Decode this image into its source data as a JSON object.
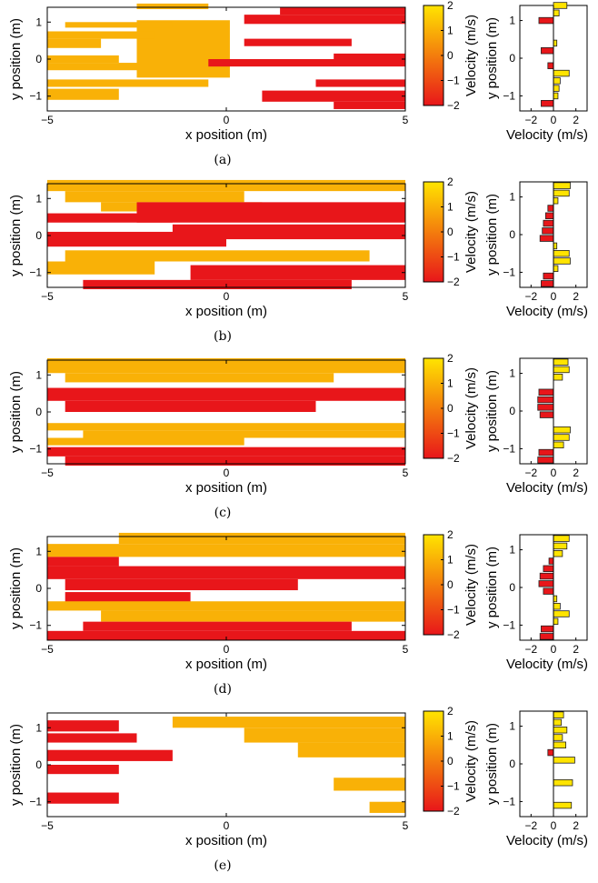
{
  "colors": {
    "yellow": "#FFE400",
    "red": "#E8161A",
    "outline": "#222222"
  },
  "chart_data": [
    {
      "type": "heatmap",
      "panel_label": "(a)",
      "xlabel": "x  position (m)",
      "ylabel": "y  position (m)",
      "xlim": [
        -5,
        5
      ],
      "ylim": [
        -1.4,
        1.4
      ],
      "x_ticks": [
        "-5",
        "0",
        "5"
      ],
      "y_ticks": [
        "-1",
        "0",
        "1"
      ],
      "colorbar": {
        "label": "Velocity (m/s)",
        "range": [
          -2,
          2
        ],
        "ticks": [
          "-2",
          "-1",
          "0",
          "1",
          "2"
        ]
      },
      "cells": [
        [
          -2.5,
          -0.5,
          1.35,
          1.5
        ],
        [
          -2.5,
          0.1,
          -0.5,
          1.05
        ],
        [
          1.5,
          5.0,
          1.2,
          1.4
        ],
        [
          0.5,
          5.0,
          0.95,
          1.2
        ],
        [
          -4.5,
          -1.5,
          0.85,
          1.0
        ],
        [
          -5.0,
          -2.0,
          0.55,
          0.75
        ],
        [
          -5.0,
          -3.5,
          0.3,
          0.55
        ],
        [
          0.5,
          3.5,
          0.35,
          0.55
        ],
        [
          -5.0,
          -3.0,
          -0.1,
          0.1
        ],
        [
          -5.0,
          -2.5,
          -0.3,
          -0.1
        ],
        [
          -0.5,
          5.0,
          -0.2,
          0.0
        ],
        [
          3.0,
          5.0,
          0.0,
          0.15
        ],
        [
          -5.0,
          -0.5,
          -0.75,
          -0.55
        ],
        [
          -5.0,
          -3.0,
          -1.1,
          -0.8
        ],
        [
          2.5,
          5.0,
          -0.75,
          -0.55
        ],
        [
          1.0,
          5.0,
          -1.15,
          -0.85
        ],
        [
          3.0,
          5.0,
          -1.35,
          -1.15
        ]
      ],
      "cell_values": [
        1,
        1,
        -2,
        -2,
        1,
        1,
        1,
        -2,
        1,
        1,
        -2,
        -2,
        1,
        1,
        -2,
        -2,
        -2
      ],
      "profile": {
        "xlabel": "Velocity (m/s)",
        "ylabel": "y  position (m)",
        "xlim": [
          -3,
          3
        ],
        "x_ticks": [
          "-2",
          "0",
          "2"
        ],
        "y_ticks": [
          "-1",
          "0",
          "1"
        ],
        "y": [
          1.4,
          1.2,
          1.0,
          0.8,
          0.6,
          0.4,
          0.2,
          0.0,
          -0.2,
          -0.4,
          -0.6,
          -0.8,
          -1.0,
          -1.2
        ],
        "values": [
          1.2,
          0.5,
          -1.3,
          0,
          0,
          0.3,
          -1.1,
          0,
          -0.5,
          1.4,
          0.6,
          0.5,
          0.4,
          -1.1
        ]
      }
    },
    {
      "type": "heatmap",
      "panel_label": "(b)",
      "xlabel": "x  position (m)",
      "ylabel": "y  position (m)",
      "xlim": [
        -5,
        5
      ],
      "ylim": [
        -1.4,
        1.4
      ],
      "x_ticks": [
        "-5",
        "0",
        "5"
      ],
      "y_ticks": [
        "-1",
        "0",
        "1"
      ],
      "colorbar": {
        "label": "Velocity (m/s)",
        "range": [
          -2,
          2
        ],
        "ticks": [
          "-2",
          "-1",
          "0",
          "1",
          "2"
        ]
      },
      "cells": [
        [
          -5.0,
          5.0,
          1.2,
          1.5
        ],
        [
          -4.5,
          0.5,
          0.9,
          1.2
        ],
        [
          -3.5,
          1.0,
          0.65,
          0.9
        ],
        [
          -5.0,
          -1.5,
          0.35,
          0.6
        ],
        [
          -2.5,
          5.0,
          0.35,
          0.9
        ],
        [
          -5.0,
          0.0,
          -0.3,
          0.1
        ],
        [
          -1.5,
          5.0,
          -0.1,
          0.3
        ],
        [
          -4.5,
          4.0,
          -0.7,
          -0.4
        ],
        [
          -5.0,
          -2.0,
          -1.05,
          -0.7
        ],
        [
          -1.0,
          5.0,
          -1.2,
          -0.8
        ],
        [
          -4.0,
          3.5,
          -1.45,
          -1.2
        ]
      ],
      "cell_values": [
        1,
        1,
        1,
        -2,
        -2,
        -2,
        -2,
        1,
        1,
        -2,
        -2
      ],
      "profile": {
        "xlabel": "Velocity (m/s)",
        "ylabel": "y  position (m)",
        "xlim": [
          -3,
          3
        ],
        "x_ticks": [
          "-2",
          "0",
          "2"
        ],
        "y_ticks": [
          "-1",
          "0",
          "1"
        ],
        "y": [
          1.3,
          1.1,
          0.9,
          0.7,
          0.5,
          0.3,
          0.1,
          -0.1,
          -0.3,
          -0.5,
          -0.7,
          -0.9,
          -1.1,
          -1.3
        ],
        "values": [
          1.5,
          1.4,
          0.4,
          -0.5,
          -0.7,
          -0.9,
          -1.0,
          -1.2,
          0.3,
          1.4,
          1.5,
          0.4,
          -0.9,
          -1.1
        ]
      }
    },
    {
      "type": "heatmap",
      "panel_label": "(c)",
      "xlabel": "x  position (m)",
      "ylabel": "y  position (m)",
      "xlim": [
        -5,
        5
      ],
      "ylim": [
        -1.4,
        1.4
      ],
      "x_ticks": [
        "-5",
        "0",
        "5"
      ],
      "y_ticks": [
        "-1",
        "0",
        "1"
      ],
      "colorbar": {
        "label": "Velocity (m/s)",
        "range": [
          -2,
          2
        ],
        "ticks": [
          "-2",
          "-1",
          "0",
          "1",
          "2"
        ]
      },
      "cells": [
        [
          -5.0,
          5.0,
          1.05,
          1.45
        ],
        [
          -4.5,
          3.0,
          0.8,
          1.05
        ],
        [
          -5.0,
          5.0,
          0.3,
          0.65
        ],
        [
          -4.5,
          2.5,
          0.0,
          0.3
        ],
        [
          -5.0,
          5.0,
          -0.5,
          -0.3
        ],
        [
          -4.0,
          5.0,
          -0.7,
          -0.5
        ],
        [
          -5.0,
          0.5,
          -0.9,
          -0.7
        ],
        [
          -5.0,
          5.0,
          -1.2,
          -0.95
        ],
        [
          -4.5,
          5.0,
          -1.45,
          -1.2
        ]
      ],
      "cell_values": [
        1,
        1,
        -2,
        -2,
        1,
        1,
        1,
        -2,
        -2
      ],
      "profile": {
        "xlabel": "Velocity (m/s)",
        "ylabel": "y  position (m)",
        "xlim": [
          -3,
          3
        ],
        "x_ticks": [
          "-2",
          "0",
          "2"
        ],
        "y_ticks": [
          "-1",
          "0",
          "1"
        ],
        "y": [
          1.3,
          1.1,
          0.9,
          0.5,
          0.3,
          0.1,
          -0.1,
          -0.5,
          -0.7,
          -0.9,
          -1.1,
          -1.3
        ],
        "values": [
          1.3,
          1.4,
          0.8,
          -1.3,
          -1.4,
          -1.4,
          -1.2,
          1.5,
          1.4,
          0.9,
          -1.3,
          -1.4
        ]
      }
    },
    {
      "type": "heatmap",
      "panel_label": "(d)",
      "xlabel": "x  position (m)",
      "ylabel": "y  position (m)",
      "xlim": [
        -5,
        5
      ],
      "ylim": [
        -1.4,
        1.4
      ],
      "x_ticks": [
        "-5",
        "0",
        "5"
      ],
      "y_ticks": [
        "-1",
        "0",
        "1"
      ],
      "colorbar": {
        "label": "Velocity (m/s)",
        "range": [
          -2,
          2
        ],
        "ticks": [
          "-2",
          "-1",
          "0",
          "1",
          "2"
        ]
      },
      "cells": [
        [
          -3.0,
          5.0,
          1.2,
          1.5
        ],
        [
          -5.0,
          5.0,
          0.85,
          1.2
        ],
        [
          -5.0,
          -3.0,
          0.6,
          0.85
        ],
        [
          -5.0,
          5.0,
          0.25,
          0.6
        ],
        [
          -4.5,
          2.0,
          -0.05,
          0.25
        ],
        [
          -4.5,
          -1.0,
          -0.4,
          -0.1
        ],
        [
          -5.0,
          5.0,
          -0.6,
          -0.35
        ],
        [
          -3.5,
          5.0,
          -0.9,
          -0.6
        ],
        [
          -4.0,
          3.5,
          -1.15,
          -0.9
        ],
        [
          -5.0,
          5.0,
          -1.4,
          -1.15
        ]
      ],
      "cell_values": [
        1,
        1,
        -2,
        -2,
        -2,
        -2,
        1,
        1,
        -2,
        -2
      ],
      "profile": {
        "xlabel": "Velocity (m/s)",
        "ylabel": "y  position (m)",
        "xlim": [
          -3,
          3
        ],
        "x_ticks": [
          "-2",
          "0",
          "2"
        ],
        "y_ticks": [
          "-1",
          "0",
          "1"
        ],
        "y": [
          1.3,
          1.1,
          0.9,
          0.7,
          0.5,
          0.3,
          0.1,
          -0.1,
          -0.3,
          -0.5,
          -0.7,
          -0.9,
          -1.1,
          -1.3
        ],
        "values": [
          1.4,
          1.2,
          0.8,
          -0.4,
          -0.9,
          -1.2,
          -1.3,
          -0.9,
          0.3,
          0.6,
          1.4,
          0.4,
          -1.1,
          -1.2
        ]
      }
    },
    {
      "type": "heatmap",
      "panel_label": "(e)",
      "xlabel": "x  position (m)",
      "ylabel": "y  position (m)",
      "xlim": [
        -5,
        5
      ],
      "ylim": [
        -1.4,
        1.4
      ],
      "x_ticks": [
        "-5",
        "0",
        "5"
      ],
      "y_ticks": [
        "-1",
        "0",
        "1"
      ],
      "colorbar": {
        "label": "Velocity (m/s)",
        "range": [
          -2,
          2
        ],
        "ticks": [
          "-2",
          "-1",
          "0",
          "1",
          "2"
        ]
      },
      "cells": [
        [
          -1.5,
          5.0,
          1.0,
          1.3
        ],
        [
          0.5,
          5.0,
          0.6,
          1.0
        ],
        [
          2.0,
          5.0,
          0.2,
          0.6
        ],
        [
          -5.0,
          -3.0,
          0.9,
          1.2
        ],
        [
          -5.0,
          -2.5,
          0.6,
          0.85
        ],
        [
          -5.0,
          -1.5,
          0.1,
          0.4
        ],
        [
          -5.0,
          -3.0,
          -0.25,
          0.0
        ],
        [
          3.0,
          5.0,
          -0.7,
          -0.35
        ],
        [
          -5.0,
          -3.0,
          -1.05,
          -0.75
        ],
        [
          4.0,
          5.0,
          -1.3,
          -1.0
        ]
      ],
      "cell_values": [
        1,
        1,
        1,
        -2,
        -2,
        -2,
        -2,
        1,
        -2,
        1
      ],
      "profile": {
        "xlabel": "Velocity (m/s)",
        "ylabel": "y  position (m)",
        "xlim": [
          -3,
          3
        ],
        "x_ticks": [
          "-2",
          "0",
          "2"
        ],
        "y_ticks": [
          "-1",
          "0",
          "1"
        ],
        "y": [
          1.3,
          1.1,
          0.9,
          0.7,
          0.5,
          0.3,
          0.1,
          -0.1,
          -0.3,
          -0.5,
          -0.7,
          -0.9,
          -1.1,
          -1.3
        ],
        "values": [
          0.9,
          0.7,
          1.2,
          0.8,
          1.1,
          -0.5,
          1.9,
          0,
          0,
          1.7,
          0,
          0,
          1.6,
          0
        ]
      }
    }
  ]
}
